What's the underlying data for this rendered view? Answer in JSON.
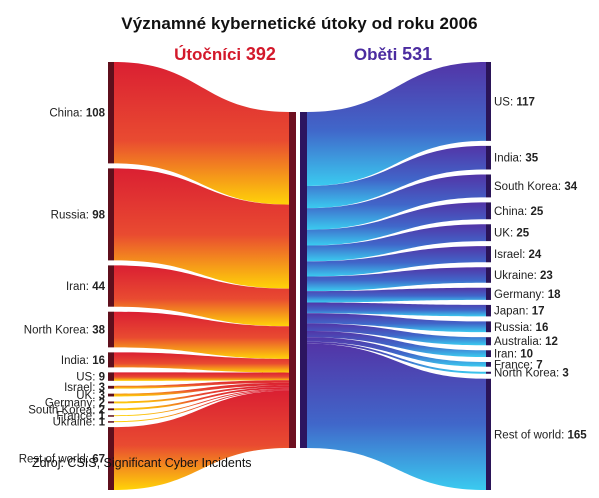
{
  "title": "Významné kybernetické útoky od roku 2006",
  "attackers": {
    "label": "Útočníci",
    "total": "392",
    "color": "#d3192b",
    "items": [
      {
        "name": "China",
        "value": 108
      },
      {
        "name": "Russia",
        "value": 98
      },
      {
        "name": "Iran",
        "value": 44
      },
      {
        "name": "North Korea",
        "value": 38
      },
      {
        "name": "India",
        "value": 16
      },
      {
        "name": "US",
        "value": 9
      },
      {
        "name": "Israel",
        "value": 3
      },
      {
        "name": "UK",
        "value": 3
      },
      {
        "name": "Germany",
        "value": 2
      },
      {
        "name": "South Korea",
        "value": 2
      },
      {
        "name": "France",
        "value": 1
      },
      {
        "name": "Ukraine",
        "value": 1
      },
      {
        "name": "Rest of world",
        "value": 67
      }
    ]
  },
  "victims": {
    "label": "Oběti",
    "total": "531",
    "color": "#4b2ca0",
    "items": [
      {
        "name": "US",
        "value": 117
      },
      {
        "name": "India",
        "value": 35
      },
      {
        "name": "South Korea",
        "value": 34
      },
      {
        "name": "China",
        "value": 25
      },
      {
        "name": "UK",
        "value": 25
      },
      {
        "name": "Israel",
        "value": 24
      },
      {
        "name": "Ukraine",
        "value": 23
      },
      {
        "name": "Germany",
        "value": 18
      },
      {
        "name": "Japan",
        "value": 17
      },
      {
        "name": "Russia",
        "value": 16
      },
      {
        "name": "Australia",
        "value": 12
      },
      {
        "name": "Iran",
        "value": 10
      },
      {
        "name": "France",
        "value": 7
      },
      {
        "name": "North Korea",
        "value": 3
      },
      {
        "name": "Rest of world",
        "value": 165
      }
    ]
  },
  "source": "Zdroj: CSIS, Significant Cyber Incidents"
}
